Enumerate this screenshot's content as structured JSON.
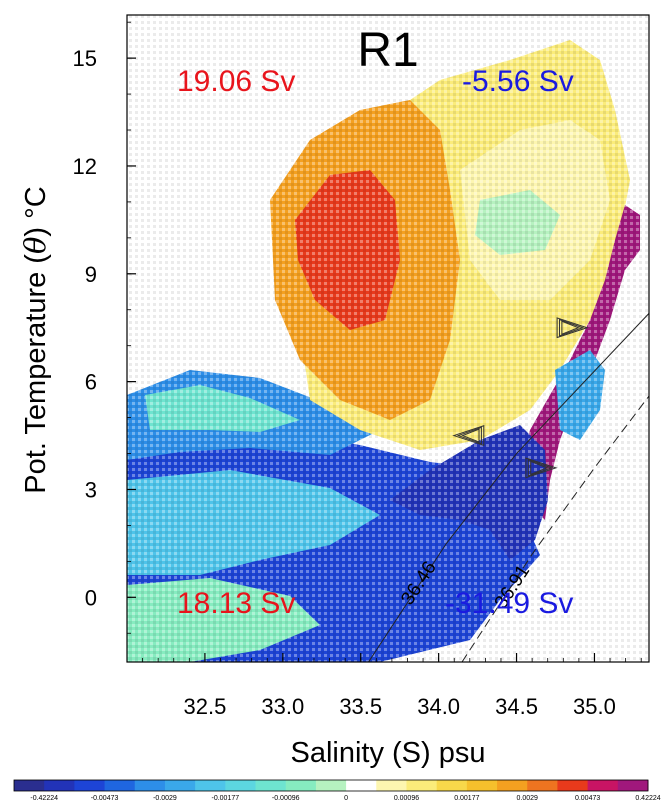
{
  "chart_data": {
    "type": "heatmap",
    "title": "R1",
    "xlabel": "Salinity (S) psu",
    "ylabel_prefix": "Pot. Temperature (",
    "ylabel_theta": "θ",
    "ylabel_suffix": ") °C",
    "xlim": [
      32.0,
      35.35
    ],
    "ylim": [
      -1.8,
      16.2
    ],
    "x_ticks": [
      32.5,
      33.0,
      33.5,
      34.0,
      34.5,
      35.0
    ],
    "x_tick_labels": [
      "32.5",
      "33.0",
      "33.5",
      "34.0",
      "34.5",
      "35.0"
    ],
    "y_ticks": [
      0,
      3,
      6,
      9,
      12,
      15
    ],
    "y_tick_labels": [
      "0",
      "3",
      "6",
      "9",
      "12",
      "15"
    ],
    "annotations": [
      {
        "text": "19.06 Sv",
        "color": "#e8141c",
        "quadrant": "top-left"
      },
      {
        "text": "-5.56 Sv",
        "color": "#1a1ae0",
        "quadrant": "top-right"
      },
      {
        "text": "18.13 Sv",
        "color": "#e8141c",
        "quadrant": "bottom-left"
      },
      {
        "text": "-31.49 Sv",
        "color": "#1a1ae0",
        "quadrant": "bottom-right"
      }
    ],
    "density_contours": [
      {
        "label": "36.46",
        "points": [
          [
            33.55,
            -1.8
          ],
          [
            34.05,
            1.5
          ],
          [
            34.5,
            4.0
          ],
          [
            35.35,
            7.9
          ]
        ]
      },
      {
        "label": "36.91",
        "points": [
          [
            34.15,
            -1.8
          ],
          [
            34.6,
            1.2
          ],
          [
            35.0,
            3.6
          ],
          [
            35.35,
            5.6
          ]
        ]
      }
    ],
    "arrows": [
      {
        "direction": "right",
        "x": 34.85,
        "y": 7.5
      },
      {
        "direction": "left",
        "x": 34.2,
        "y": 4.5
      },
      {
        "direction": "right",
        "x": 34.65,
        "y": 3.6
      }
    ],
    "colorbar": {
      "colors": [
        "#2a2e8f",
        "#2233b8",
        "#1d44d6",
        "#1f66e0",
        "#2d8ee8",
        "#3aa8ea",
        "#4ec4ea",
        "#5cd6e0",
        "#6ee4d0",
        "#86ecc0",
        "#b6f2c0",
        "#ffffff",
        "#fdf6b0",
        "#fbec7a",
        "#f8d84a",
        "#f6c02c",
        "#f4a020",
        "#ee7420",
        "#e83a1c",
        "#c81464",
        "#a0187c"
      ],
      "labels": [
        "-0.42224",
        "-0.00473",
        "-0.0029",
        "-0.00177",
        "-0.00096",
        "0",
        "0.00096",
        "0.00177",
        "0.0029",
        "0.00473",
        "0.42224"
      ]
    }
  }
}
